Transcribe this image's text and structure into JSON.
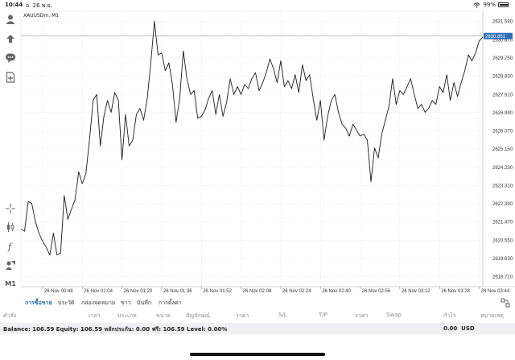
{
  "status": {
    "time": "10:44",
    "date": "อ. 26 พ.ย.",
    "battery": "99%",
    "wifi_icon": "wifi-icon",
    "battery_icon": "battery-icon"
  },
  "symbol_label": "XAUUSDm, M1",
  "toolbar_icons": [
    "account-icon",
    "trade-icon",
    "chat-icon",
    "add-document-icon",
    "crosshair-icon",
    "candlestick-icon",
    "function-icon",
    "objects-icon",
    "timeframe-icon"
  ],
  "timeframe_label": "M1",
  "colors": {
    "line": "#1a1a1a",
    "grid": "#dcdcdc",
    "price_tag": "#2f6fb5",
    "accent_tab": "#2b6cb0",
    "balance_bg": "#eef0f4"
  },
  "chart_data": {
    "type": "line",
    "series": [
      {
        "values": [
          2621.1,
          2621.0,
          2622.5,
          2622.4,
          2621.5,
          2620.9,
          2620.5,
          2620.2,
          2619.8,
          2620.9,
          2619.8,
          2619.9,
          2622.8,
          2621.6,
          2622.1,
          2622.6,
          2624.0,
          2623.4,
          2623.9,
          2625.6,
          2627.6,
          2627.9,
          2625.3,
          2626.8,
          2627.6,
          2627.0,
          2628.0,
          2627.6,
          2624.6,
          2626.9,
          2625.3,
          2625.6,
          2626.9,
          2627.2,
          2626.6,
          2627.7,
          2629.5,
          2631.6,
          2629.9,
          2630.0,
          2629.1,
          2629.5,
          2628.4,
          2626.5,
          2627.7,
          2630.1,
          2628.7,
          2627.9,
          2628.1,
          2626.7,
          2626.8,
          2627.1,
          2627.7,
          2628.1,
          2626.9,
          2627.9,
          2626.8,
          2627.5,
          2628.7,
          2627.9,
          2628.3,
          2627.9,
          2628.4,
          2628.2,
          2628.7,
          2629.0,
          2628.1,
          2628.5,
          2629.0,
          2629.7,
          2629.2,
          2628.5,
          2629.6,
          2628.3,
          2628.6,
          2628.2,
          2628.9,
          2628.0,
          2629.4,
          2628.6,
          2628.9,
          2627.7,
          2626.6,
          2627.6,
          2625.6,
          2626.8,
          2627.6,
          2627.9,
          2627.0,
          2626.4,
          2626.2,
          2625.8,
          2626.4,
          2626.1,
          2625.8,
          2625.9,
          2625.6,
          2623.5,
          2625.2,
          2624.7,
          2625.9,
          2626.6,
          2627.3,
          2628.7,
          2627.4,
          2628.1,
          2627.9,
          2628.3,
          2628.7,
          2627.9,
          2627.2,
          2627.4,
          2627.0,
          2627.2,
          2627.6,
          2627.4,
          2628.3,
          2628.0,
          2628.9,
          2627.6,
          2628.5,
          2627.8,
          2628.5,
          2629.1,
          2629.9,
          2629.6,
          2630.0,
          2630.6,
          2630.8
        ]
      }
    ],
    "current_price": "2630.851",
    "current_price_value": 2630.851,
    "ylim": [
      2618.2,
      2632.1
    ],
    "xlim": [
      0,
      128
    ],
    "y_ticks": [
      "2631.590",
      "2630.670",
      "2629.750",
      "2628.830",
      "2627.910",
      "2626.990",
      "2626.070",
      "2625.150",
      "2624.230",
      "2623.310",
      "2622.390",
      "2621.470",
      "2620.550",
      "2619.630",
      "2618.710"
    ],
    "y_tick_values": [
      2631.59,
      2630.67,
      2629.75,
      2628.83,
      2627.91,
      2626.99,
      2626.07,
      2625.15,
      2624.23,
      2623.31,
      2622.39,
      2621.47,
      2620.55,
      2619.63,
      2618.71
    ],
    "x_ticks": [
      "26 Nov 00:48",
      "26 Nov 01:04",
      "26 Nov 01:20",
      "26 Nov 01:36",
      "26 Nov 01:52",
      "26 Nov 02:08",
      "26 Nov 02:24",
      "26 Nov 02:40",
      "26 Nov 02:56",
      "26 Nov 03:12",
      "26 Nov 03:28",
      "26 Nov 03:44"
    ],
    "x_tick_values": [
      6,
      17,
      28,
      39,
      50,
      61,
      72,
      83,
      94,
      105,
      116,
      127
    ],
    "grid": true
  },
  "tabs": [
    "การซื้อขาย",
    "ประวัติ",
    "กล่องจดหมาย",
    "ข่าว",
    "บันทึก",
    "การตั้งค่า"
  ],
  "columns": [
    "คำสั่ง",
    "เวลา",
    "ประเภท",
    "ขนาด",
    "สัญลักษณ์",
    "ราคา",
    "S/L",
    "T/P",
    "ราคา",
    "Swap",
    "กำไร",
    "หมายเหตุ"
  ],
  "balance": {
    "summary": "Balance: 106.59 Equity: 106.59 หลักประกัน: 0.00 ฟรี: 106.59 Level: 0.00%",
    "profit": "0.00",
    "currency": "USD"
  }
}
